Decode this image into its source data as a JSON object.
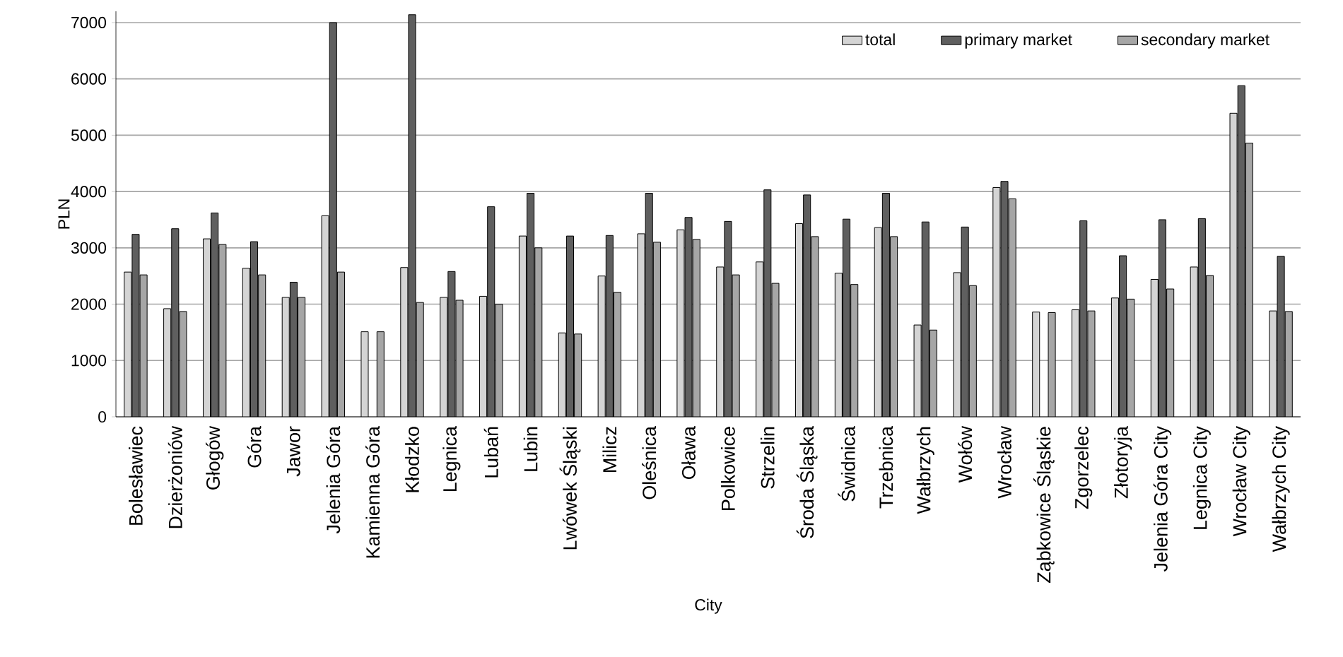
{
  "chart_data": {
    "type": "bar",
    "xlabel": "City",
    "ylabel": "PLN",
    "categories": [
      "Bolesławiec",
      "Dzierżoniów",
      "Głogów",
      "Góra",
      "Jawor",
      "Jelenia Góra",
      "Kamienna Góra",
      "Kłodzko",
      "Legnica",
      "Lubań",
      "Lubin",
      "Lwówek Śląski",
      "Milicz",
      "Oleśnica",
      "Oława",
      "Polkowice",
      "Strzelin",
      "Środa Śląska",
      "Świdnica",
      "Trzebnica",
      "Wałbrzych",
      "Wołów",
      "Wrocław",
      "Ząbkowice Śląskie",
      "Zgorzelec",
      "Złotoryja",
      "Jelenia Góra City",
      "Legnica City",
      "Wrocław City",
      "Wałbrzych City"
    ],
    "series": [
      {
        "name": "total",
        "color": "#d4d4d4",
        "values": [
          2570,
          1920,
          3160,
          2640,
          2120,
          3570,
          1510,
          2650,
          2120,
          2140,
          3210,
          1490,
          2500,
          3250,
          3320,
          2660,
          2750,
          3430,
          2550,
          3360,
          1630,
          2560,
          4070,
          1860,
          1900,
          2110,
          2440,
          2660,
          5390,
          1880
        ]
      },
      {
        "name": "primary market",
        "color": "#5f5f5f",
        "values": [
          3240,
          3340,
          3620,
          3110,
          2390,
          7000,
          null,
          7140,
          2580,
          3730,
          3970,
          3210,
          3220,
          3970,
          3540,
          3470,
          4030,
          3940,
          3510,
          3970,
          3460,
          3370,
          4180,
          null,
          3480,
          2860,
          3500,
          3520,
          5880,
          2850
        ]
      },
      {
        "name": "secondary market",
        "color": "#a6a6a6",
        "values": [
          2520,
          1870,
          3060,
          2520,
          2120,
          2570,
          1510,
          2030,
          2070,
          2000,
          3000,
          1470,
          2210,
          3100,
          3150,
          2520,
          2370,
          3200,
          2350,
          3200,
          1540,
          2330,
          3870,
          1850,
          1880,
          2090,
          2270,
          2510,
          4860,
          1870
        ]
      }
    ],
    "ylim": [
      0,
      7200
    ],
    "yticks": [
      0,
      1000,
      2000,
      3000,
      4000,
      5000,
      6000,
      7000
    ],
    "grid": "y",
    "legend": "top right"
  }
}
